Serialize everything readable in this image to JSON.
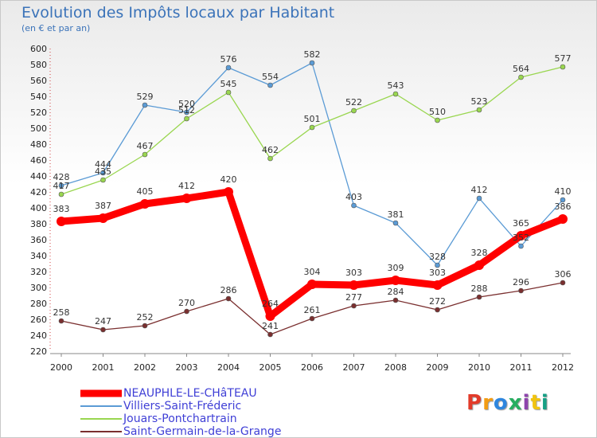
{
  "header": {
    "title": "Evolution des Impôts locaux par Habitant",
    "subtitle": "(en € et par an)"
  },
  "chart_data": {
    "type": "line",
    "title": "Evolution des Impôts locaux par Habitant",
    "subtitle": "(en € et par an)",
    "xlabel": "",
    "ylabel": "",
    "x": [
      2000,
      2001,
      2002,
      2003,
      2004,
      2005,
      2006,
      2007,
      2008,
      2009,
      2010,
      2011,
      2012
    ],
    "ylim": [
      220,
      600
    ],
    "ytick_step": 20,
    "grid": false,
    "legend_position": "bottom-left",
    "series": [
      {
        "name": "Villiers-Saint-Fréderic",
        "color": "#5b9bd5",
        "values": [
          428,
          444,
          529,
          520,
          576,
          554,
          582,
          403,
          381,
          328,
          412,
          352,
          410
        ],
        "labels": [
          "428",
          "444",
          "529",
          "520",
          "576",
          "554",
          "582",
          "403",
          "381",
          "328",
          "412",
          "352",
          "410"
        ]
      },
      {
        "name": "Jouars-Pontchartrain",
        "color": "#99d64f",
        "values": [
          417,
          435,
          467,
          512,
          545,
          462,
          501,
          522,
          543,
          510,
          523,
          564,
          577
        ],
        "labels": [
          "417",
          "435",
          "467",
          "512",
          "545",
          "462",
          "501",
          "522",
          "543",
          "510",
          "523",
          "564",
          "577"
        ]
      },
      {
        "name": "Saint-Germain-de-la-Grange",
        "color": "#7a2f2f",
        "values": [
          258,
          247,
          252,
          270,
          286,
          241,
          261,
          277,
          284,
          272,
          288,
          296,
          306
        ],
        "labels": [
          "258",
          "247",
          "252",
          "270",
          "286",
          "241",
          "261",
          "277",
          "284",
          "272",
          "288",
          "296",
          "306"
        ]
      },
      {
        "name": "NEAUPHLE-LE-CHâTEAU",
        "color": "#ff0000",
        "values": [
          383,
          387,
          405,
          412,
          420,
          264,
          304,
          303,
          309,
          303,
          328,
          365,
          386
        ],
        "labels": [
          "383",
          "387",
          "405",
          "412",
          "420",
          "264",
          "304",
          "303",
          "309",
          "303",
          "328",
          "365",
          "386"
        ]
      }
    ]
  },
  "legend": {
    "items": [
      {
        "label": "NEAUPHLE-LE-CHâTEAU",
        "color": "#ff0000"
      },
      {
        "label": "Villiers-Saint-Fréderic",
        "color": "#5b9bd5"
      },
      {
        "label": "Jouars-Pontchartrain",
        "color": "#99d64f"
      },
      {
        "label": "Saint-Germain-de-la-Grange",
        "color": "#7a2f2f"
      }
    ]
  },
  "logo": {
    "text": "Proxiti",
    "colors": [
      "#e23b2a",
      "#f39c12",
      "#2e86de",
      "#27ae60",
      "#8e44ad",
      "#f1c40f",
      "#16a085"
    ]
  }
}
